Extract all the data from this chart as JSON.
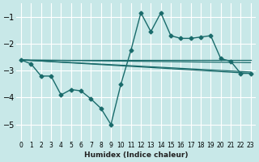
{
  "title": "",
  "xlabel": "Humidex (Indice chaleur)",
  "bg_color": "#c8e8e8",
  "grid_color": "#ffffff",
  "line_color": "#1a6b6b",
  "xlim": [
    -0.5,
    23.5
  ],
  "ylim": [
    -5.6,
    -0.5
  ],
  "yticks": [
    -5,
    -4,
    -3,
    -2,
    -1
  ],
  "xticks": [
    0,
    1,
    2,
    3,
    4,
    5,
    6,
    7,
    8,
    9,
    10,
    11,
    12,
    13,
    14,
    15,
    16,
    17,
    18,
    19,
    20,
    21,
    22,
    23
  ],
  "main_line": {
    "x": [
      0,
      1,
      2,
      3,
      4,
      5,
      6,
      7,
      8,
      9,
      10,
      11,
      12,
      13,
      14,
      15,
      16,
      17,
      18,
      19,
      20,
      21,
      22,
      23
    ],
    "y": [
      -2.6,
      -2.75,
      -3.2,
      -3.2,
      -3.9,
      -3.7,
      -3.75,
      -4.05,
      -4.4,
      -5.0,
      -3.5,
      -2.25,
      -0.85,
      -1.55,
      -0.85,
      -1.7,
      -1.8,
      -1.8,
      -1.75,
      -1.7,
      -2.55,
      -2.65,
      -3.1,
      -3.1
    ]
  },
  "trend_lines": [
    {
      "x": [
        0,
        23
      ],
      "y": [
        -2.6,
        -3.05
      ]
    },
    {
      "x": [
        0,
        23
      ],
      "y": [
        -2.6,
        -3.1
      ]
    },
    {
      "x": [
        0,
        23
      ],
      "y": [
        -2.6,
        -2.6
      ]
    },
    {
      "x": [
        0,
        23
      ],
      "y": [
        -2.6,
        -2.7
      ]
    }
  ]
}
